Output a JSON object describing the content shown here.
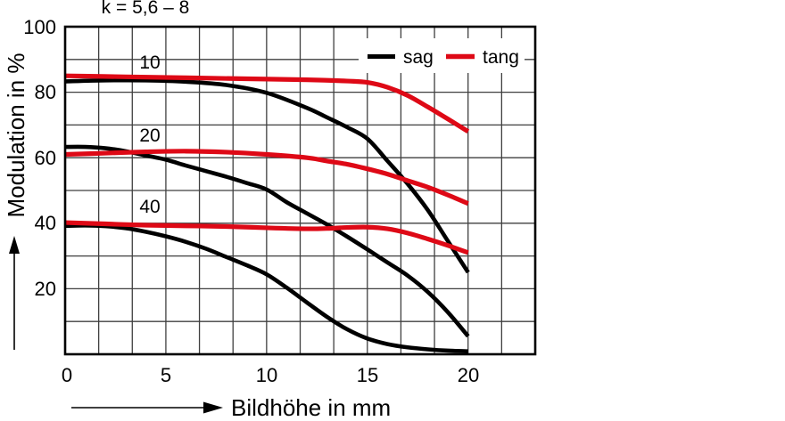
{
  "figure": {
    "title": "k = 5,6 – 8",
    "colors": {
      "sag": "#000000",
      "tang": "#de0916",
      "grid": "#3f3f3f",
      "border": "#000000",
      "background": "#ffffff"
    },
    "legend": {
      "sag_label": "sag",
      "tang_label": "tang"
    }
  },
  "chart_data": {
    "type": "line",
    "title": "k = 5,6 – 8",
    "xlabel": "Bildhöhe in mm",
    "ylabel": "Modulation in %",
    "xlim": [
      0,
      23.33
    ],
    "ylim": [
      0,
      100
    ],
    "grid": {
      "cols": 14,
      "rows": 10,
      "on": true
    },
    "x_tick_values": [
      0,
      5,
      10,
      15,
      20
    ],
    "x_tick_labels": [
      "0",
      "5",
      "10",
      "15",
      "20"
    ],
    "y_tick_values": [
      100,
      80,
      60,
      40,
      20
    ],
    "y_tick_labels": [
      "100",
      "80",
      "60",
      "40",
      "20"
    ],
    "legend_position": "top-right",
    "legend_entries": [
      {
        "label": "sag",
        "color": "#000000"
      },
      {
        "label": "tang",
        "color": "#de0916"
      }
    ],
    "curve_group_labels": [
      {
        "text": "10"
      },
      {
        "text": "20"
      },
      {
        "text": "40"
      }
    ],
    "series": [
      {
        "name": "sag 40",
        "orientation": "sagittal",
        "frequency_lp_mm": 40,
        "color": "#000000",
        "points": [
          [
            0,
            39.2
          ],
          [
            1,
            39.3
          ],
          [
            2,
            39.1
          ],
          [
            3,
            38.5
          ],
          [
            4,
            37.4
          ],
          [
            5,
            36.0
          ],
          [
            6,
            34.3
          ],
          [
            7,
            32.2
          ],
          [
            8,
            29.7
          ],
          [
            9,
            27.2
          ],
          [
            10,
            24.4
          ],
          [
            11,
            20.3
          ],
          [
            12,
            15.8
          ],
          [
            13,
            11.4
          ],
          [
            14,
            7.6
          ],
          [
            15,
            4.8
          ],
          [
            16,
            3.1
          ],
          [
            17,
            2.1
          ],
          [
            18,
            1.5
          ],
          [
            19,
            1.1
          ],
          [
            20,
            0.9
          ]
        ]
      },
      {
        "name": "sag 20",
        "orientation": "sagittal",
        "frequency_lp_mm": 20,
        "color": "#000000",
        "points": [
          [
            0,
            63.3
          ],
          [
            1,
            63.3
          ],
          [
            2,
            62.9
          ],
          [
            3,
            62.0
          ],
          [
            4,
            60.7
          ],
          [
            5,
            59.4
          ],
          [
            6,
            57.6
          ],
          [
            7,
            55.9
          ],
          [
            8,
            54.2
          ],
          [
            9,
            52.3
          ],
          [
            10,
            50.3
          ],
          [
            11,
            46.4
          ],
          [
            12,
            43.0
          ],
          [
            13,
            39.6
          ],
          [
            14,
            35.9
          ],
          [
            15,
            32.0
          ],
          [
            16,
            28.0
          ],
          [
            17,
            24.0
          ],
          [
            18,
            19.0
          ],
          [
            19,
            12.8
          ],
          [
            20,
            5.5
          ]
        ]
      },
      {
        "name": "sag 10",
        "orientation": "sagittal",
        "frequency_lp_mm": 10,
        "color": "#000000",
        "points": [
          [
            0,
            83.3
          ],
          [
            2,
            83.6
          ],
          [
            4,
            83.6
          ],
          [
            6,
            83.2
          ],
          [
            8,
            82.2
          ],
          [
            10,
            79.8
          ],
          [
            12,
            75.2
          ],
          [
            13,
            72.3
          ],
          [
            14,
            69.3
          ],
          [
            15,
            65.8
          ],
          [
            16,
            59.0
          ],
          [
            17,
            52.0
          ],
          [
            18,
            44.0
          ],
          [
            19,
            34.5
          ],
          [
            20,
            25.0
          ]
        ]
      },
      {
        "name": "tang 40",
        "orientation": "tangential",
        "frequency_lp_mm": 40,
        "color": "#de0916",
        "points": [
          [
            0,
            40.2
          ],
          [
            2,
            39.8
          ],
          [
            4,
            39.4
          ],
          [
            6,
            39.2
          ],
          [
            8,
            39.0
          ],
          [
            10,
            38.6
          ],
          [
            12,
            38.3
          ],
          [
            13,
            38.4
          ],
          [
            14,
            38.7
          ],
          [
            15,
            38.8
          ],
          [
            16,
            38.3
          ],
          [
            17,
            37.0
          ],
          [
            18,
            35.2
          ],
          [
            19,
            33.2
          ],
          [
            20,
            31.0
          ]
        ]
      },
      {
        "name": "tang 20",
        "orientation": "tangential",
        "frequency_lp_mm": 20,
        "color": "#de0916",
        "points": [
          [
            0,
            61.0
          ],
          [
            2,
            61.4
          ],
          [
            4,
            61.8
          ],
          [
            6,
            62.0
          ],
          [
            8,
            61.7
          ],
          [
            10,
            61.0
          ],
          [
            12,
            60.0
          ],
          [
            13,
            59.0
          ],
          [
            14,
            58.0
          ],
          [
            15,
            56.6
          ],
          [
            16,
            55.0
          ],
          [
            17,
            53.0
          ],
          [
            18,
            51.0
          ],
          [
            19,
            48.6
          ],
          [
            20,
            46.0
          ]
        ]
      },
      {
        "name": "tang 10",
        "orientation": "tangential",
        "frequency_lp_mm": 10,
        "color": "#de0916",
        "points": [
          [
            0,
            85.0
          ],
          [
            3,
            84.7
          ],
          [
            6,
            84.4
          ],
          [
            9,
            84.1
          ],
          [
            12,
            83.8
          ],
          [
            14,
            83.4
          ],
          [
            15,
            83.0
          ],
          [
            16,
            81.5
          ],
          [
            17,
            79.0
          ],
          [
            18,
            75.5
          ],
          [
            19,
            71.8
          ],
          [
            20,
            68.0
          ]
        ]
      }
    ]
  }
}
